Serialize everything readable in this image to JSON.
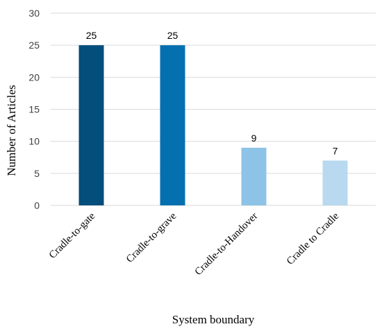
{
  "chart_data": {
    "type": "bar",
    "categories": [
      "Cradle-to-gate",
      "Cradle-to-grave",
      "Cradle-to-Handover",
      "Cradle to Cradle"
    ],
    "values": [
      25,
      25,
      9,
      7
    ],
    "data_labels": [
      "25",
      "25",
      "9",
      "7"
    ],
    "bar_colors": [
      "#034e7b",
      "#0570b0",
      "#8dc3e6",
      "#b8d9ef"
    ],
    "title": "",
    "xlabel": "System boundary",
    "ylabel": "Number of Articles",
    "ylim": [
      0,
      30
    ],
    "yticks": [
      0,
      5,
      10,
      15,
      20,
      25,
      30
    ],
    "ytick_labels": [
      "0",
      "5",
      "10",
      "15",
      "20",
      "25",
      "30"
    ],
    "grid": true,
    "legend": "none"
  }
}
